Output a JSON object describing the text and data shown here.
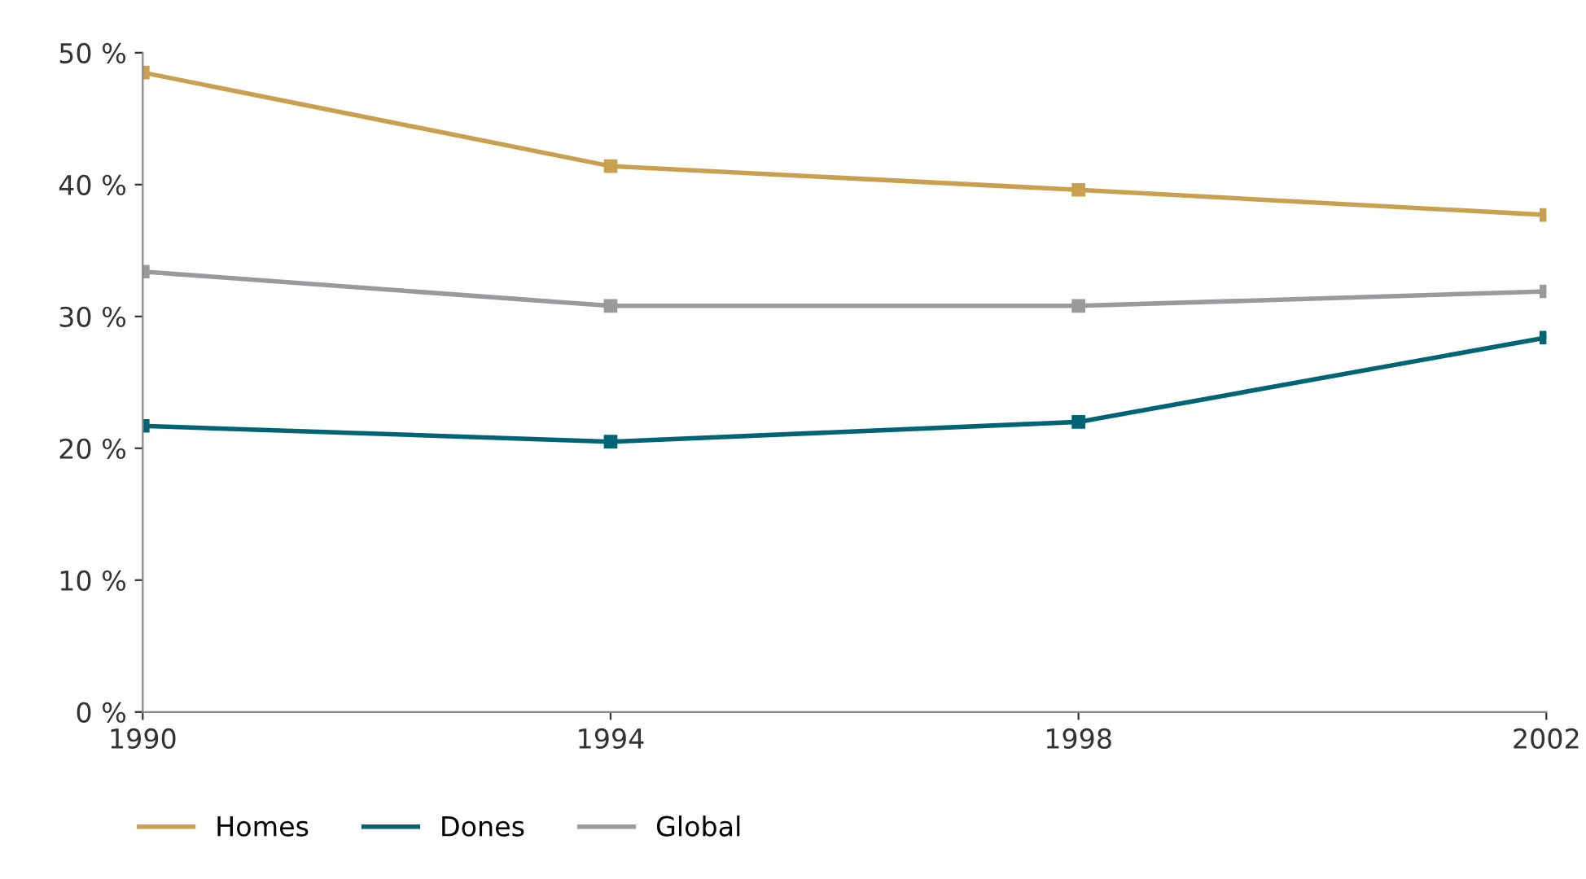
{
  "chart_data": {
    "type": "line",
    "x": [
      1990,
      1994,
      1998,
      2002
    ],
    "xlim": [
      1990,
      2002
    ],
    "xticks": [
      1990,
      1994,
      1998,
      2002
    ],
    "ylim": [
      0,
      50
    ],
    "yticks": [
      {
        "value": 0,
        "label": "0 %"
      },
      {
        "value": 10,
        "label": "10 %"
      },
      {
        "value": 20,
        "label": "20 %"
      },
      {
        "value": 30,
        "label": "30 %"
      },
      {
        "value": 40,
        "label": "40 %"
      },
      {
        "value": 50,
        "label": "50 %"
      }
    ],
    "marker": "square",
    "grid": false,
    "legend": "bottom left",
    "series": [
      {
        "name": "Homes",
        "color": "#c9a050",
        "values": [
          48.5,
          41.4,
          39.6,
          37.7
        ]
      },
      {
        "name": "Dones",
        "color": "#006474",
        "values": [
          21.7,
          20.5,
          22.0,
          28.4
        ]
      },
      {
        "name": "Global",
        "color": "#9a9a9c",
        "values": [
          33.4,
          30.8,
          30.8,
          31.9
        ]
      }
    ]
  }
}
